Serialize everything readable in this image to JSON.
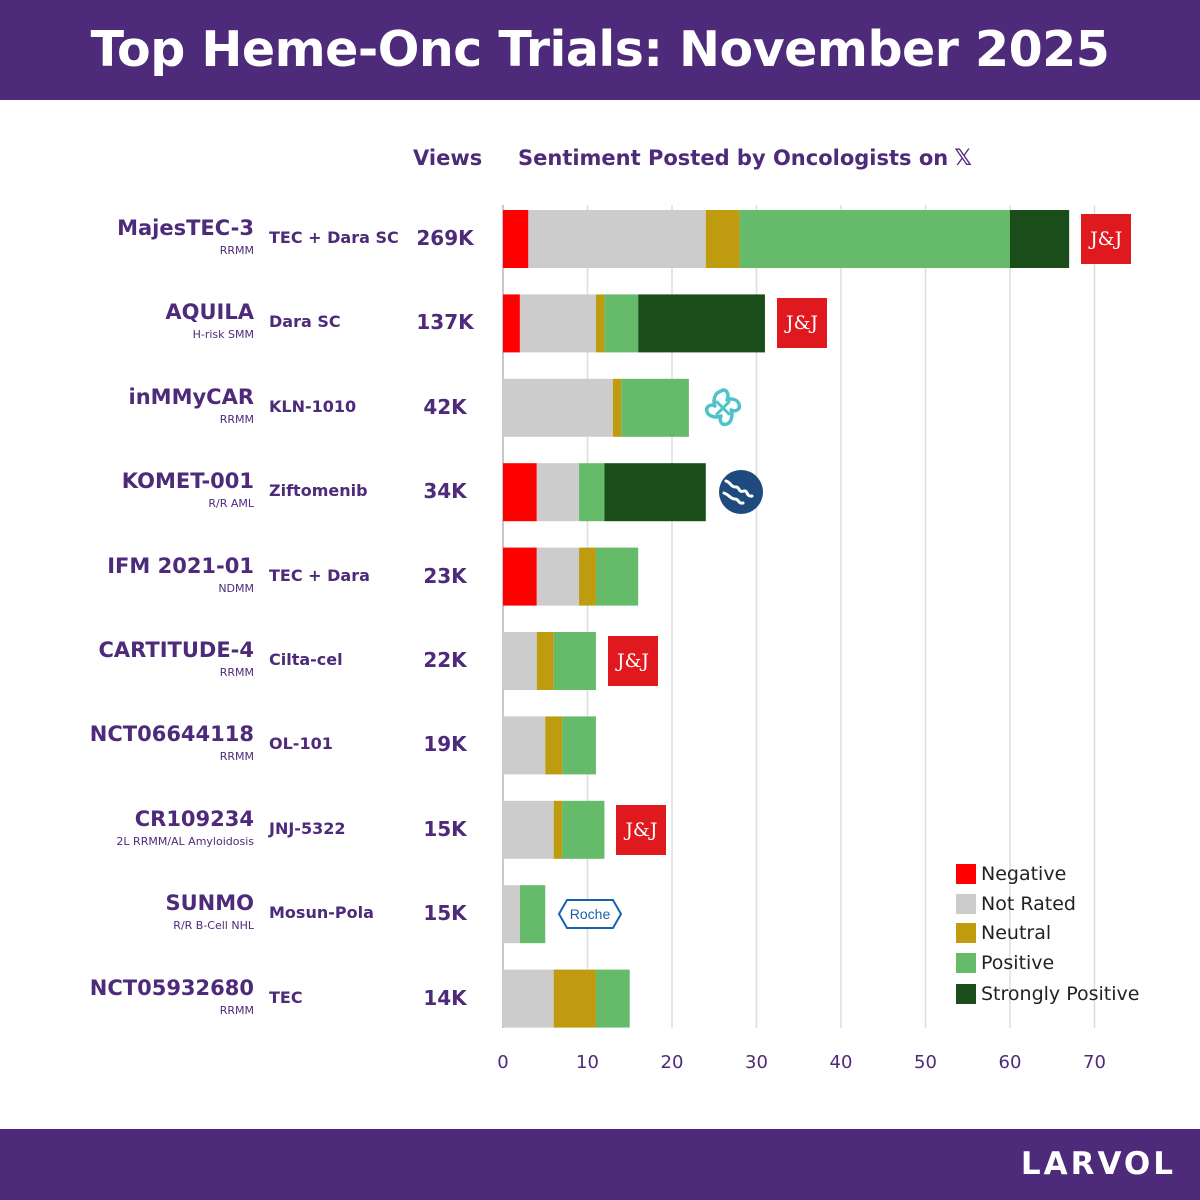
{
  "header": {
    "title": "Top Heme-Onc Trials: November 2025"
  },
  "footer": {
    "brand": "LARVOL"
  },
  "columns": {
    "views": "Views",
    "sentiment": "Sentiment Posted by Oncologists on"
  },
  "colors": {
    "brand": "#4e2a7a",
    "negative": "#ff0000",
    "not_rated": "#cccccc",
    "neutral": "#bf9b0f",
    "positive": "#66bb6a",
    "strongly_positive": "#1b4d1b",
    "jj_red": "#e0191f"
  },
  "chart_data": {
    "type": "bar",
    "orientation": "horizontal",
    "stacked": true,
    "categories": [
      "MajesTEC-3",
      "AQUILA",
      "inMMyCAR",
      "KOMET-001",
      "IFM 2021-01",
      "CARTITUDE-4",
      "NCT06644118",
      "CR109234",
      "SUNMO",
      "NCT05932680"
    ],
    "subtitles": [
      "RRMM",
      "H-risk SMM",
      "RRMM",
      "R/R AML",
      "NDMM",
      "RRMM",
      "RRMM",
      "2L RRMM/AL Amyloidosis",
      "R/R B-Cell NHL",
      "RRMM"
    ],
    "drugs": [
      "TEC + Dara SC",
      "Dara SC",
      "KLN-1010",
      "Ziftomenib",
      "TEC + Dara",
      "Cilta-cel",
      "OL-101",
      "JNJ-5322",
      "Mosun-Pola",
      "TEC"
    ],
    "views": [
      "269K",
      "137K",
      "42K",
      "34K",
      "23K",
      "22K",
      "19K",
      "15K",
      "15K",
      "14K"
    ],
    "sponsor_logos": [
      "jj-logo",
      "jj-logo",
      "kln-logo",
      "kura-logo",
      "",
      "jj-logo",
      "",
      "jj-logo",
      "roche-logo",
      ""
    ],
    "roche_text": "Roche",
    "jj_text": "J&J",
    "series": [
      {
        "name": "Negative",
        "values": [
          3,
          2,
          0,
          4,
          4,
          0,
          0,
          0,
          0,
          0
        ]
      },
      {
        "name": "Not Rated",
        "values": [
          21,
          9,
          13,
          5,
          5,
          4,
          5,
          6,
          2,
          6
        ]
      },
      {
        "name": "Neutral",
        "values": [
          4,
          1,
          1,
          0,
          2,
          2,
          2,
          1,
          0,
          5
        ]
      },
      {
        "name": "Positive",
        "values": [
          32,
          4,
          8,
          3,
          5,
          5,
          4,
          5,
          3,
          4
        ]
      },
      {
        "name": "Strongly Positive",
        "values": [
          7,
          15,
          0,
          12,
          0,
          0,
          0,
          0,
          0,
          0
        ]
      }
    ],
    "xlim": [
      0,
      75
    ],
    "xticks": [
      0,
      10,
      20,
      30,
      40,
      50,
      60,
      70
    ],
    "grid": true,
    "legend_position": "bottom-right"
  }
}
